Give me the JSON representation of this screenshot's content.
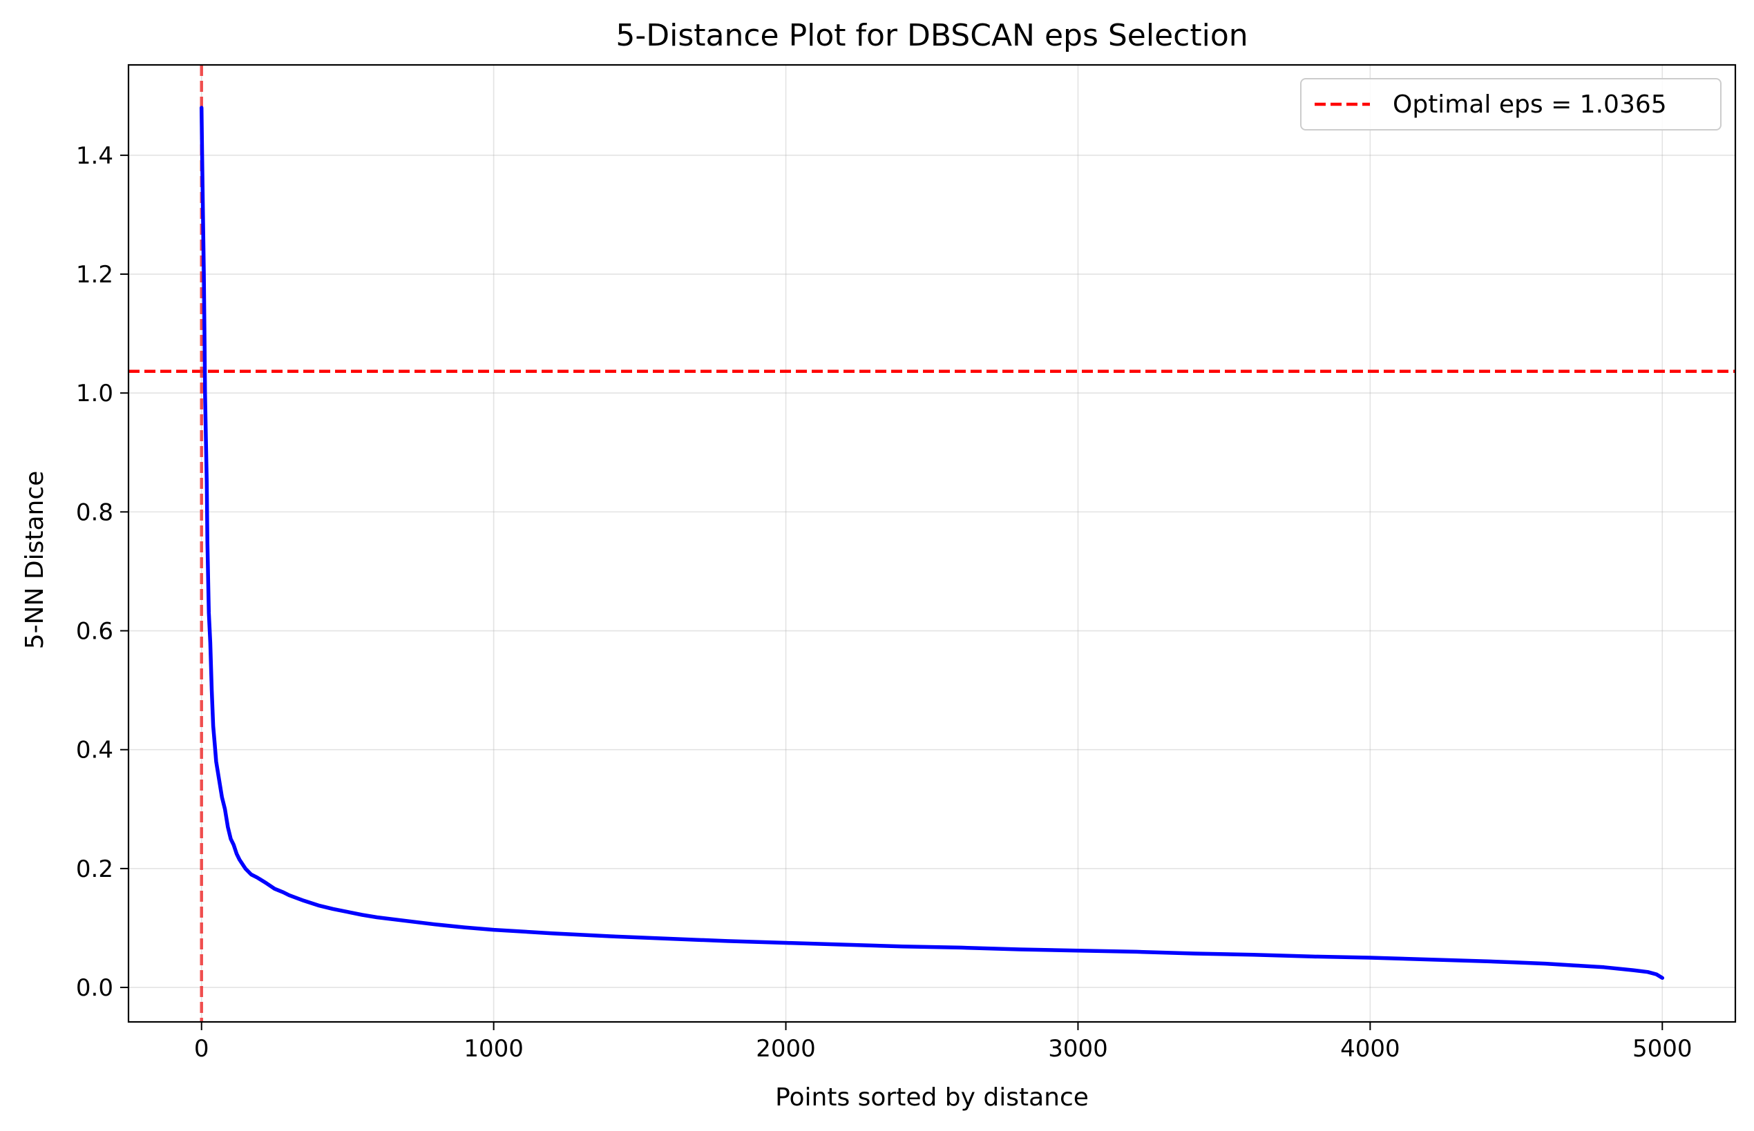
{
  "chart_data": {
    "type": "line",
    "title": "5-Distance Plot for DBSCAN eps Selection",
    "xlabel": "Points sorted by distance",
    "ylabel": "5-NN Distance",
    "xlim": [
      -250,
      5250
    ],
    "ylim": [
      -0.058,
      1.552
    ],
    "xticks": [
      0,
      1000,
      2000,
      3000,
      4000,
      5000
    ],
    "xtick_labels": [
      "0",
      "1000",
      "2000",
      "3000",
      "4000",
      "5000"
    ],
    "yticks": [
      0.0,
      0.2,
      0.4,
      0.6,
      0.8,
      1.0,
      1.2,
      1.4
    ],
    "ytick_labels": [
      "0.0",
      "0.2",
      "0.4",
      "0.6",
      "0.8",
      "1.0",
      "1.2",
      "1.4"
    ],
    "grid": true,
    "legend_position": "top-right",
    "series": [
      {
        "color": "#0000ff",
        "x": [
          0,
          2,
          5,
          8,
          10,
          12,
          15,
          18,
          20,
          25,
          30,
          35,
          40,
          45,
          50,
          60,
          70,
          80,
          90,
          100,
          110,
          120,
          130,
          150,
          170,
          190,
          200,
          220,
          250,
          280,
          300,
          350,
          400,
          450,
          500,
          550,
          600,
          700,
          800,
          900,
          1000,
          1200,
          1400,
          1600,
          1800,
          2000,
          2200,
          2400,
          2600,
          2800,
          3000,
          3200,
          3400,
          3600,
          3800,
          4000,
          4200,
          4400,
          4500,
          4600,
          4700,
          4800,
          4900,
          4950,
          4980,
          5000
        ],
        "y": [
          1.48,
          1.4,
          1.3,
          1.2,
          1.1,
          1.0,
          0.92,
          0.85,
          0.75,
          0.63,
          0.58,
          0.5,
          0.44,
          0.41,
          0.38,
          0.35,
          0.32,
          0.3,
          0.27,
          0.25,
          0.24,
          0.225,
          0.215,
          0.2,
          0.19,
          0.185,
          0.182,
          0.176,
          0.166,
          0.16,
          0.155,
          0.146,
          0.138,
          0.132,
          0.127,
          0.122,
          0.118,
          0.112,
          0.106,
          0.101,
          0.097,
          0.091,
          0.086,
          0.082,
          0.078,
          0.075,
          0.072,
          0.069,
          0.067,
          0.064,
          0.062,
          0.06,
          0.057,
          0.055,
          0.052,
          0.05,
          0.047,
          0.044,
          0.042,
          0.04,
          0.037,
          0.034,
          0.029,
          0.026,
          0.022,
          0.016
        ]
      }
    ],
    "reference_lines": [
      {
        "orientation": "horizontal",
        "value": 1.0365,
        "color": "#ff0000",
        "style": "dashed",
        "legend": "Optimal eps = 1.0365"
      },
      {
        "orientation": "vertical",
        "value": 0,
        "color": "#ee3333",
        "style": "dashed"
      }
    ]
  }
}
